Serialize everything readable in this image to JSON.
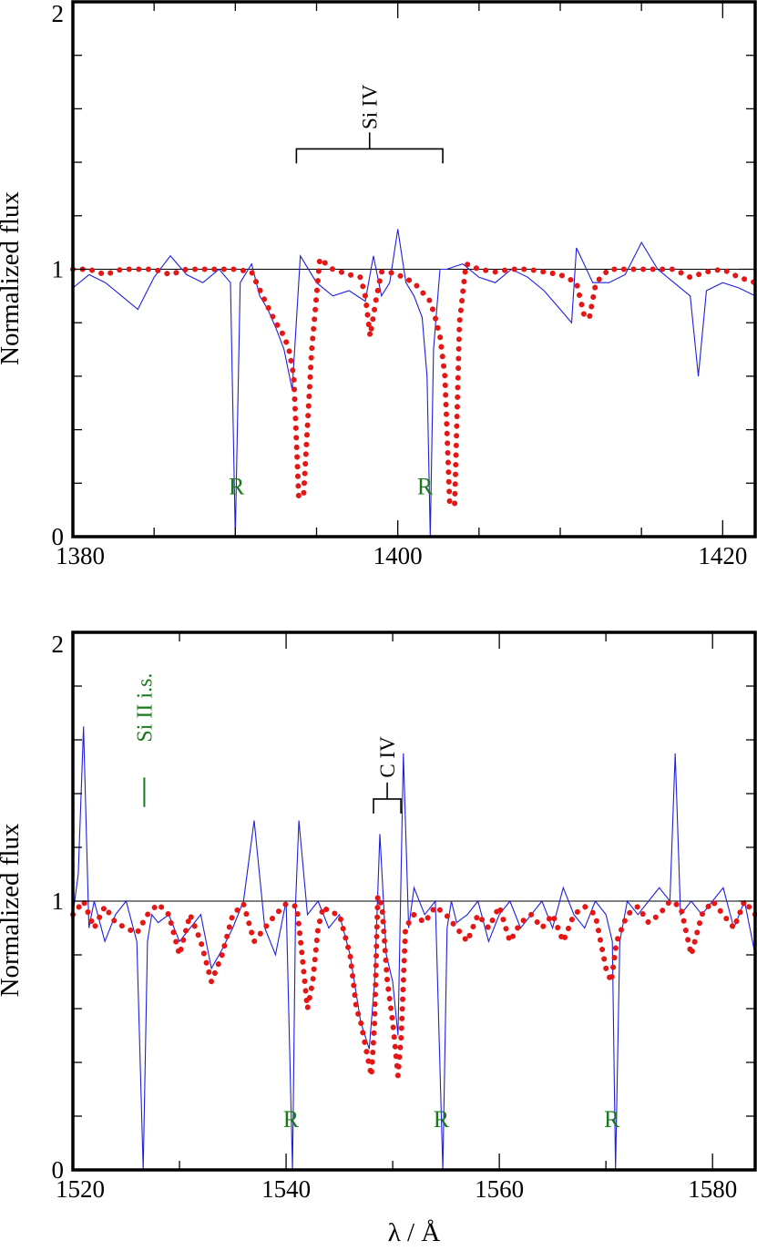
{
  "chart_data": [
    {
      "type": "line",
      "xlim": [
        1380,
        1422
      ],
      "ylim": [
        0,
        2
      ],
      "xticks": [
        1380,
        1400,
        1420
      ],
      "xminor": [
        1385,
        1390,
        1395,
        1405,
        1410,
        1415
      ],
      "yticks": [
        0,
        1,
        2
      ],
      "ylabel": "Normalized flux",
      "xlabel": "",
      "reference_level": 1,
      "series": [
        {
          "style": "thin solid blue (observed)",
          "color": "#1f1fe0",
          "x": [
            1380,
            1381,
            1382,
            1383,
            1384,
            1385,
            1386,
            1387,
            1388,
            1389,
            1389.7,
            1390,
            1390.3,
            1391,
            1391.5,
            1392,
            1392.5,
            1393,
            1393.5,
            1394,
            1395,
            1396,
            1397,
            1398,
            1398.5,
            1399,
            1399.5,
            1400,
            1400.5,
            1401,
            1401.5,
            1401.8,
            1402,
            1402.2,
            1402.6,
            1403,
            1404,
            1405,
            1406,
            1407,
            1408,
            1409,
            1410,
            1410.7,
            1411,
            1412,
            1413,
            1414,
            1415,
            1416,
            1417,
            1418,
            1418.5,
            1419,
            1420,
            1421,
            1422
          ],
          "y": [
            0.93,
            0.98,
            0.95,
            0.9,
            0.85,
            0.97,
            1.05,
            0.98,
            0.95,
            1.0,
            0.95,
            0.0,
            0.95,
            1.02,
            0.9,
            0.85,
            0.78,
            0.7,
            0.55,
            1.05,
            0.95,
            0.9,
            0.92,
            0.88,
            1.05,
            0.9,
            0.95,
            1.15,
            0.95,
            0.9,
            0.82,
            0.6,
            0.0,
            0.7,
            1.0,
            1.0,
            1.02,
            0.97,
            0.95,
            1.0,
            0.97,
            0.92,
            0.85,
            0.8,
            1.08,
            0.95,
            0.95,
            0.98,
            1.1,
            1.0,
            0.95,
            0.9,
            0.6,
            0.92,
            0.95,
            0.93,
            0.9
          ]
        },
        {
          "style": "thick dotted red (model)",
          "color": "#e51616",
          "x": [
            1380,
            1381,
            1382,
            1383,
            1384,
            1385,
            1386,
            1387,
            1388,
            1389,
            1390,
            1391,
            1391.3,
            1392,
            1392.5,
            1393,
            1393.3,
            1393.6,
            1393.9,
            1394.2,
            1394.7,
            1395.2,
            1396,
            1397,
            1397.7,
            1398,
            1398.3,
            1398.7,
            1399,
            1399.4,
            1400,
            1401,
            1402,
            1402.3,
            1402.6,
            1402.9,
            1403.2,
            1403.5,
            1403.8,
            1404.2,
            1405,
            1406,
            1407,
            1408,
            1409,
            1410,
            1411,
            1411.5,
            1411.8,
            1412.2,
            1413,
            1414,
            1415,
            1416,
            1417,
            1418,
            1419,
            1420,
            1421,
            1422
          ],
          "y": [
            1.0,
            1.0,
            0.98,
            1.0,
            1.0,
            1.0,
            0.98,
            1.0,
            1.0,
            1.0,
            1.0,
            0.99,
            0.95,
            0.86,
            0.8,
            0.75,
            0.7,
            0.6,
            0.15,
            0.15,
            0.7,
            1.04,
            1.0,
            0.98,
            0.97,
            0.9,
            0.75,
            0.9,
            0.99,
            0.99,
            0.98,
            0.95,
            0.88,
            0.82,
            0.75,
            0.6,
            0.12,
            0.12,
            0.8,
            1.02,
            1.0,
            0.99,
            1.0,
            1.0,
            0.99,
            0.98,
            0.95,
            0.82,
            0.82,
            0.95,
            1.0,
            1.0,
            1.0,
            1.0,
            1.0,
            0.97,
            0.99,
            1.0,
            0.97,
            0.95
          ]
        }
      ],
      "annotations": {
        "ion_label": "Si IV",
        "bracket_lines_x": [
          1393.76,
          1402.77
        ],
        "bracket_y": 1.45,
        "interstellar_marks": [
          {
            "label": "R",
            "x": 1390.3
          },
          {
            "label": "R",
            "x": 1401.9
          }
        ]
      },
      "xticklabels": [
        "1380",
        "1400",
        "1420"
      ],
      "yticklabels": [
        "0",
        "1",
        "2"
      ]
    },
    {
      "type": "line",
      "xlim": [
        1520,
        1584
      ],
      "ylim": [
        0,
        2
      ],
      "xticks": [
        1520,
        1540,
        1560,
        1580
      ],
      "xminor": [
        1530,
        1550,
        1570
      ],
      "yticks": [
        0,
        1,
        2
      ],
      "ylabel": "Normalized flux",
      "xlabel": "λ / Å",
      "reference_level": 1,
      "series": [
        {
          "style": "thin solid blue (observed)",
          "color": "#1f1fe0",
          "x": [
            1520,
            1520.5,
            1521,
            1521.5,
            1522,
            1523,
            1524,
            1525,
            1526,
            1526.6,
            1527,
            1527.4,
            1528,
            1529,
            1530,
            1531,
            1532,
            1533,
            1534,
            1535,
            1536,
            1537,
            1538,
            1539,
            1540,
            1540.6,
            1540.9,
            1541.2,
            1542,
            1543,
            1544,
            1545,
            1546,
            1547,
            1547.8,
            1548.3,
            1548.8,
            1549.4,
            1550,
            1550.5,
            1551,
            1551.5,
            1552,
            1553,
            1554,
            1554.7,
            1555.1,
            1555.5,
            1556,
            1557,
            1558,
            1559,
            1560,
            1561,
            1562,
            1563,
            1564,
            1565,
            1566,
            1567,
            1568,
            1569,
            1570,
            1570.6,
            1570.9,
            1571.3,
            1572,
            1573,
            1574,
            1575,
            1576,
            1576.5,
            1577,
            1578,
            1579,
            1580,
            1581,
            1582,
            1583,
            1584
          ],
          "y": [
            0.95,
            1.1,
            1.65,
            0.9,
            1.0,
            0.85,
            0.95,
            1.0,
            0.85,
            0.0,
            0.85,
            0.95,
            0.92,
            0.95,
            0.85,
            0.9,
            0.95,
            0.75,
            0.82,
            0.9,
            1.0,
            1.3,
            0.9,
            0.8,
            1.0,
            0.0,
            1.0,
            1.3,
            0.95,
            1.0,
            0.9,
            0.95,
            0.8,
            0.55,
            0.45,
            0.7,
            1.25,
            0.8,
            0.7,
            0.5,
            1.55,
            0.9,
            1.05,
            0.95,
            1.0,
            0.0,
            0.9,
            1.0,
            0.92,
            0.95,
            1.0,
            0.85,
            0.95,
            1.0,
            0.9,
            0.95,
            1.0,
            0.9,
            1.05,
            0.95,
            0.9,
            1.0,
            0.95,
            0.85,
            0.0,
            0.85,
            1.0,
            0.95,
            1.0,
            1.05,
            1.0,
            1.55,
            0.95,
            1.0,
            0.95,
            1.0,
            1.05,
            0.9,
            1.0,
            0.8
          ]
        },
        {
          "style": "thick dotted red (model)",
          "color": "#e51616",
          "x": [
            1520,
            1521,
            1522,
            1523,
            1524,
            1525,
            1526,
            1527,
            1528,
            1529,
            1530,
            1531,
            1532,
            1533,
            1534,
            1535,
            1536,
            1537,
            1538,
            1539,
            1540,
            1541,
            1541.5,
            1542,
            1542.5,
            1543,
            1543.5,
            1544,
            1545,
            1546,
            1546.6,
            1547,
            1547.5,
            1548,
            1548.3,
            1548.6,
            1549,
            1549.5,
            1550,
            1550.5,
            1550.8,
            1551.2,
            1552,
            1553,
            1554,
            1555,
            1556,
            1557,
            1558,
            1559,
            1560,
            1561,
            1562,
            1563,
            1564,
            1565,
            1566,
            1567,
            1568,
            1569,
            1570,
            1570.5,
            1571,
            1572,
            1573,
            1574,
            1575,
            1576,
            1577,
            1578,
            1579,
            1580,
            1581,
            1582,
            1583,
            1584
          ],
          "y": [
            0.95,
            1.0,
            0.9,
            0.98,
            0.92,
            0.9,
            0.88,
            0.95,
            0.99,
            0.95,
            0.8,
            0.95,
            0.85,
            0.7,
            0.8,
            0.95,
            0.99,
            0.85,
            0.9,
            0.95,
            0.99,
            0.98,
            0.8,
            0.6,
            0.7,
            0.9,
            0.98,
            0.96,
            0.95,
            0.8,
            0.6,
            0.55,
            0.45,
            0.35,
            0.55,
            1.02,
            0.98,
            0.7,
            0.55,
            0.35,
            0.5,
            0.9,
            0.95,
            0.92,
            0.98,
            0.95,
            0.9,
            0.85,
            0.95,
            0.9,
            0.98,
            0.85,
            0.92,
            0.95,
            0.9,
            0.95,
            0.85,
            0.95,
            0.98,
            0.95,
            0.75,
            0.7,
            0.85,
            0.95,
            0.98,
            0.92,
            0.95,
            1.0,
            0.98,
            0.8,
            0.95,
            1.0,
            0.95,
            0.9,
            1.0,
            0.95
          ]
        }
      ],
      "annotations": {
        "ion_label": "C IV",
        "bracket_lines_x": [
          1548.2,
          1550.77
        ],
        "bracket_y": 1.38,
        "interstellar_marks": [
          {
            "label": "R",
            "x": 1540.8
          },
          {
            "label": "R",
            "x": 1554.9
          },
          {
            "label": "R",
            "x": 1570.9
          }
        ],
        "ism_label": "Si II i.s.",
        "ism_label_x": 1526.7
      },
      "xticklabels": [
        "1520",
        "1540",
        "1560",
        "1580"
      ],
      "yticklabels": [
        "0",
        "1",
        "2"
      ]
    }
  ]
}
